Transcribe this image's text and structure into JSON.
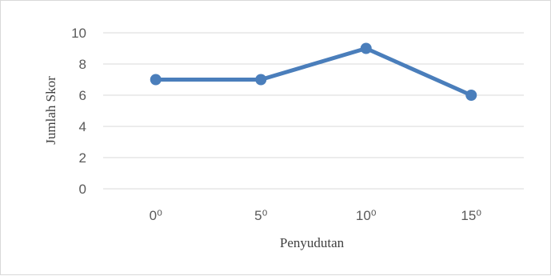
{
  "chart_data": {
    "type": "line",
    "categories": [
      "0⁰",
      "5⁰",
      "10⁰",
      "15⁰"
    ],
    "series": [
      {
        "values": [
          7,
          7,
          9,
          6
        ]
      }
    ],
    "xlabel": "Penyudutan",
    "ylabel": "Jumlah Skor",
    "ylim": [
      0,
      10
    ],
    "yticks": [
      0,
      2,
      4,
      6,
      8,
      10
    ],
    "grid": true,
    "legend": "none",
    "series_color": "#4a7ebb",
    "gridline_color": "#d9d9d9"
  }
}
